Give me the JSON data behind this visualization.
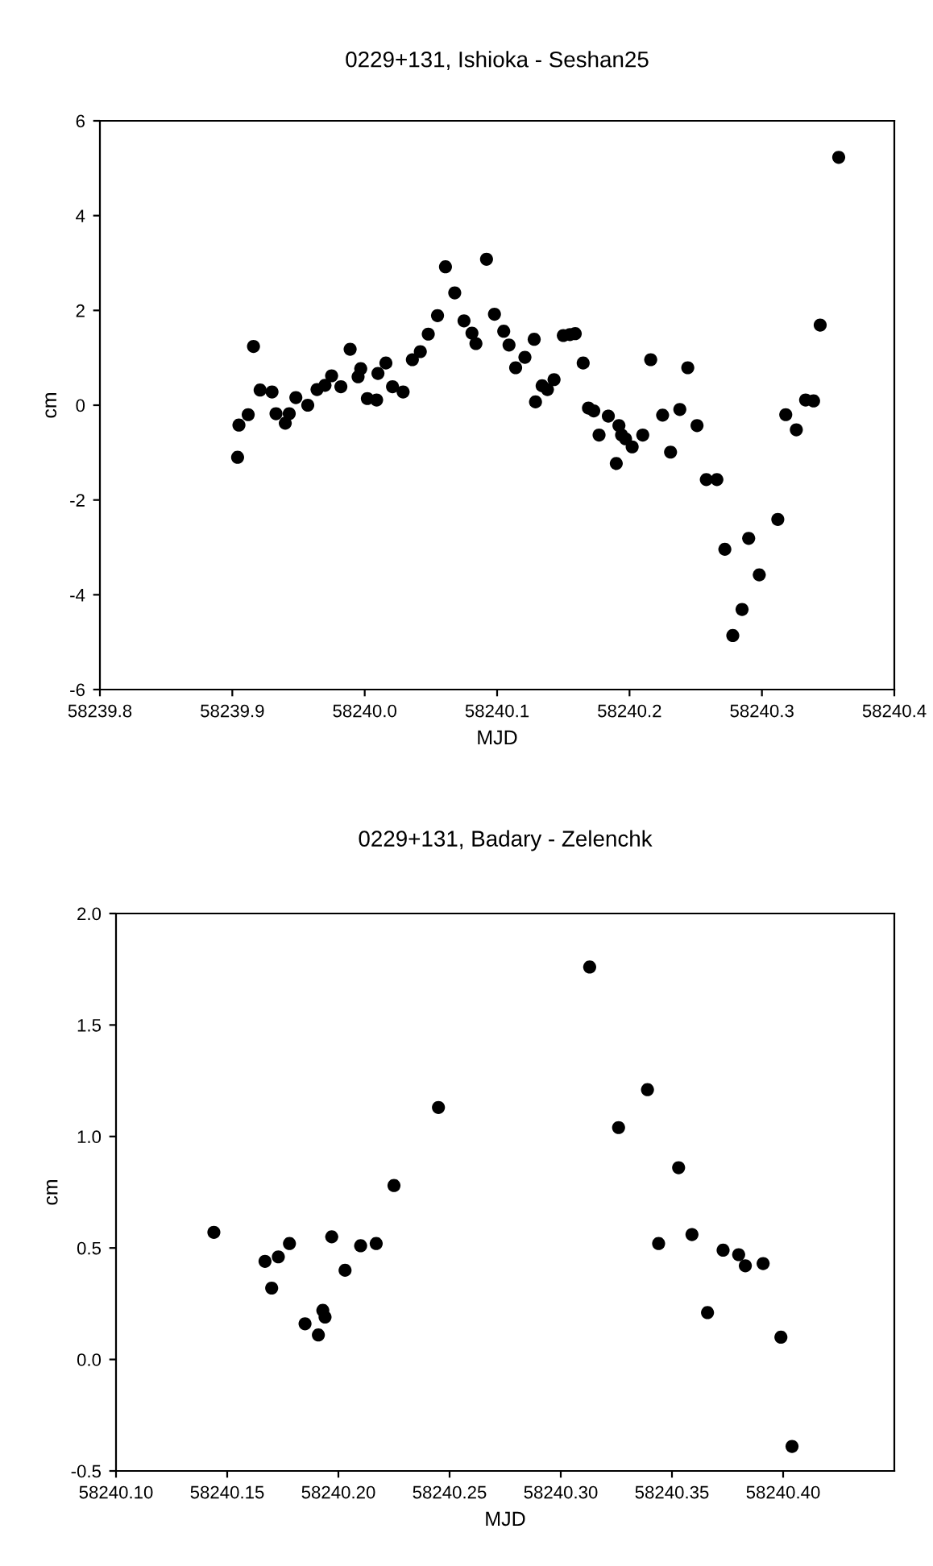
{
  "chart_data": [
    {
      "type": "scatter",
      "title": "0229+131, Ishioka - Seshan25",
      "xlabel": "MJD",
      "ylabel": "cm",
      "marker": "circle",
      "grid": false,
      "legend": false,
      "xlim": [
        58239.8,
        58240.4
      ],
      "xticks": [
        58239.8,
        58239.9,
        {
          "value": 58240.0,
          "label": "58240.0"
        },
        58240.1,
        58240.2,
        58240.3,
        58240.4
      ],
      "ylim": [
        -6,
        6
      ],
      "yticks": [
        -6,
        -4,
        -2,
        0,
        2,
        4,
        6
      ],
      "series": [
        {
          "color": "#000000",
          "x": [
            58239.904,
            58239.905,
            58239.912,
            58239.916,
            58239.921,
            58239.93,
            58239.933,
            58239.94,
            58239.943,
            58239.948,
            58239.957,
            58239.964,
            58239.97,
            58239.975,
            58239.982,
            58239.989,
            58239.995,
            58239.997,
            58240.002,
            58240.009,
            58240.01,
            58240.016,
            58240.021,
            58240.029,
            58240.036,
            58240.042,
            58240.048,
            58240.055,
            58240.061,
            58240.068,
            58240.075,
            58240.081,
            58240.084,
            58240.092,
            58240.098,
            58240.105,
            58240.109,
            58240.114,
            58240.121,
            58240.128,
            58240.129,
            58240.134,
            58240.138,
            58240.143,
            58240.15,
            58240.155,
            58240.159,
            58240.165,
            58240.169,
            58240.173,
            58240.177,
            58240.184,
            58240.19,
            58240.192,
            58240.194,
            58240.197,
            58240.202,
            58240.21,
            58240.216,
            58240.225,
            58240.231,
            58240.238,
            58240.244,
            58240.251,
            58240.258,
            58240.266,
            58240.272,
            58240.278,
            58240.285,
            58240.29,
            58240.298,
            58240.312,
            58240.318,
            58240.326,
            58240.333,
            58240.339,
            58240.344,
            58240.358
          ],
          "values": [
            -1.1,
            -0.42,
            -0.2,
            1.24,
            0.32,
            0.28,
            -0.18,
            -0.38,
            -0.18,
            0.16,
            0.0,
            0.33,
            0.42,
            0.62,
            0.39,
            1.18,
            0.6,
            0.77,
            0.14,
            0.11,
            0.67,
            0.89,
            0.39,
            0.28,
            0.96,
            1.13,
            1.5,
            1.89,
            2.92,
            2.37,
            1.78,
            1.52,
            1.3,
            3.08,
            1.92,
            1.56,
            1.27,
            0.79,
            1.01,
            1.39,
            0.07,
            0.41,
            0.33,
            0.54,
            1.47,
            1.49,
            1.51,
            0.89,
            -0.06,
            -0.12,
            -0.63,
            -0.23,
            -1.23,
            -0.43,
            -0.63,
            -0.71,
            -0.88,
            -0.63,
            0.96,
            -0.21,
            -0.99,
            -0.09,
            0.79,
            -0.43,
            -1.57,
            -1.57,
            -3.04,
            -4.86,
            -4.31,
            -2.81,
            -3.58,
            -2.41,
            -0.2,
            -0.52,
            0.11,
            0.09,
            1.69,
            5.23
          ]
        }
      ]
    },
    {
      "type": "scatter",
      "title": "0229+131, Badary - Zelenchk",
      "xlabel": "MJD",
      "ylabel": "cm",
      "marker": "circle",
      "grid": false,
      "legend": false,
      "xlim": [
        58240.1,
        58240.45
      ],
      "xticks": [
        {
          "value": 58240.1,
          "label": "58240.10"
        },
        {
          "value": 58240.15,
          "label": "58240.15"
        },
        {
          "value": 58240.2,
          "label": "58240.20"
        },
        {
          "value": 58240.25,
          "label": "58240.25"
        },
        {
          "value": 58240.3,
          "label": "58240.30"
        },
        {
          "value": 58240.35,
          "label": "58240.35"
        },
        {
          "value": 58240.4,
          "label": "58240.40"
        }
      ],
      "ylim": [
        -0.5,
        2.0
      ],
      "yticks": [
        {
          "value": -0.5,
          "label": "-0.5"
        },
        {
          "value": 0.0,
          "label": "0.0"
        },
        {
          "value": 0.5,
          "label": "0.5"
        },
        {
          "value": 1.0,
          "label": "1.0"
        },
        {
          "value": 1.5,
          "label": "1.5"
        },
        {
          "value": 2.0,
          "label": "2.0"
        }
      ],
      "series": [
        {
          "color": "#000000",
          "x": [
            58240.144,
            58240.167,
            58240.17,
            58240.173,
            58240.178,
            58240.185,
            58240.191,
            58240.193,
            58240.194,
            58240.197,
            58240.203,
            58240.21,
            58240.217,
            58240.225,
            58240.245,
            58240.313,
            58240.326,
            58240.339,
            58240.344,
            58240.353,
            58240.359,
            58240.366,
            58240.373,
            58240.38,
            58240.383,
            58240.391,
            58240.399,
            58240.404
          ],
          "values": [
            0.57,
            0.44,
            0.32,
            0.46,
            0.52,
            0.16,
            0.11,
            0.22,
            0.19,
            0.55,
            0.4,
            0.51,
            0.52,
            0.78,
            1.13,
            1.76,
            1.04,
            1.21,
            0.52,
            0.86,
            0.56,
            0.21,
            0.49,
            0.47,
            0.42,
            0.43,
            0.1,
            -0.39
          ]
        }
      ]
    }
  ]
}
